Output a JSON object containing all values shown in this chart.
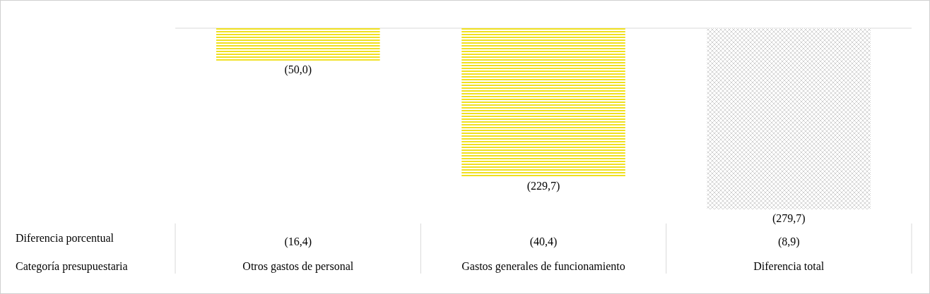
{
  "chart_data": {
    "type": "bar",
    "xlabel": "Categoría presupuestaria",
    "categories": [
      "Otros gastos de personal",
      "Gastos generales de funcionamiento",
      "Diferencia total"
    ],
    "values": [
      -50.0,
      -229.7,
      -279.7
    ],
    "colors": [
      "#f0e020",
      "#f0e020",
      "#c8c8c8"
    ],
    "value_labels": [
      "(50,0)",
      "(229,7)",
      "(279,7)"
    ],
    "annotations": [
      "Diferencia porcentual",
      "(16,4)",
      "(40,4)",
      "(8,9)"
    ]
  }
}
